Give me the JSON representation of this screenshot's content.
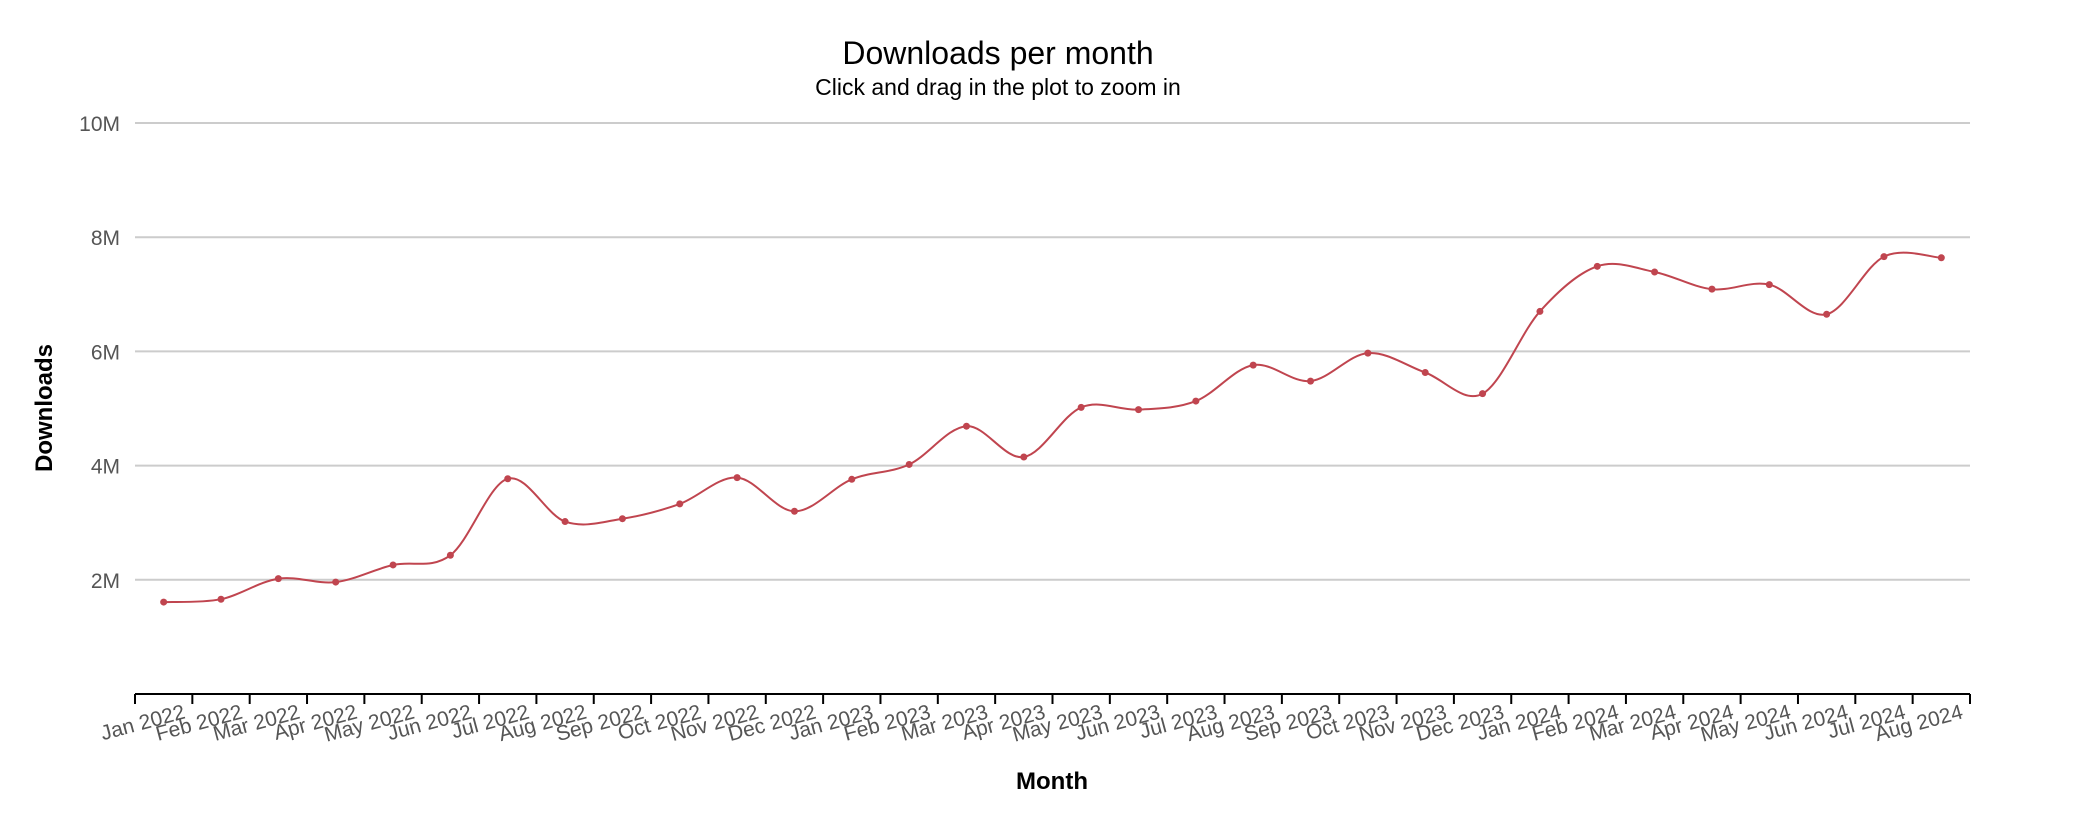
{
  "chart_data": {
    "type": "line",
    "title": "Downloads per month",
    "subtitle": "Click and drag in the plot to zoom in",
    "xlabel": "Month",
    "ylabel": "Downloads",
    "ylim": [
      0,
      10000000
    ],
    "yticks": [
      {
        "value": 2000000,
        "label": "2M"
      },
      {
        "value": 4000000,
        "label": "4M"
      },
      {
        "value": 6000000,
        "label": "6M"
      },
      {
        "value": 8000000,
        "label": "8M"
      },
      {
        "value": 10000000,
        "label": "10M"
      }
    ],
    "grid": true,
    "line_color": "#c0454f",
    "categories": [
      "Jan 2022",
      "Feb 2022",
      "Mar 2022",
      "Apr 2022",
      "May 2022",
      "Jun 2022",
      "Jul 2022",
      "Aug 2022",
      "Sep 2022",
      "Oct 2022",
      "Nov 2022",
      "Dec 2022",
      "Jan 2023",
      "Feb 2023",
      "Mar 2023",
      "Apr 2023",
      "May 2023",
      "Jun 2023",
      "Jul 2023",
      "Aug 2023",
      "Sep 2023",
      "Oct 2023",
      "Nov 2023",
      "Dec 2023",
      "Jan 2024",
      "Feb 2024",
      "Mar 2024",
      "Apr 2024",
      "May 2024",
      "Jun 2024",
      "Jul 2024",
      "Aug 2024"
    ],
    "values": [
      1610000,
      1660000,
      2020000,
      1960000,
      2260000,
      2430000,
      3770000,
      3020000,
      3070000,
      3330000,
      3790000,
      3200000,
      3760000,
      4020000,
      4690000,
      4150000,
      5020000,
      4980000,
      5130000,
      5760000,
      5480000,
      5970000,
      5630000,
      5260000,
      6700000,
      7490000,
      7390000,
      7090000,
      7170000,
      6650000,
      7660000,
      7640000
    ]
  }
}
